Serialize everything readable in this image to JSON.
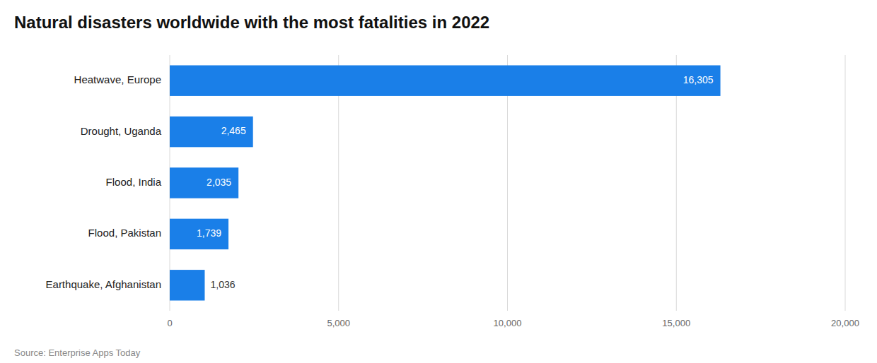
{
  "chart_data": {
    "type": "bar",
    "orientation": "horizontal",
    "title": "Natural disasters worldwide with the most fatalities in 2022",
    "categories": [
      "Earthquake, Afghanistan",
      "Flood, Pakistan",
      "Flood, India",
      "Drought, Uganda",
      "Heatwave, Europe"
    ],
    "values": [
      1036,
      1739,
      2035,
      2465,
      16305
    ],
    "value_labels": [
      "1,036",
      "1,739",
      "2,035",
      "2,465",
      "16,305"
    ],
    "data_labels": true,
    "color": "#1a7fe8",
    "xlim": [
      0,
      20000
    ],
    "xticks": [
      0,
      {
        "value": 5000,
        "label": "5,000"
      },
      {
        "value": 10000,
        "label": "10,000"
      },
      {
        "value": 15000,
        "label": "15,000"
      },
      {
        "value": 20000,
        "label": "20,000"
      }
    ],
    "grid": true,
    "source": "Source: Enterprise Apps Today"
  }
}
